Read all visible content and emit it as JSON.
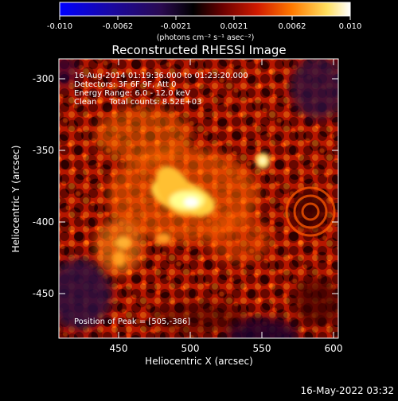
{
  "colorbar": {
    "ticks": [
      "-0.010",
      "-0.0062",
      "-0.0021",
      "0.0021",
      "0.0062",
      "0.010"
    ],
    "units": "(photons cm⁻² s⁻¹ asec⁻²)",
    "colors": [
      "#0000ff",
      "#2a0a6a",
      "#000000",
      "#7a0000",
      "#e02000",
      "#ff8800",
      "#ffff80",
      "#ffffff"
    ]
  },
  "plot": {
    "title": "Reconstructed RHESSI Image",
    "xlabel": "Heliocentric X (arcsec)",
    "ylabel": "Heliocentric Y (arcsec)",
    "xticks": [
      "450",
      "500",
      "550",
      "600"
    ],
    "yticks": [
      "-300",
      "-350",
      "-400",
      "-450"
    ],
    "annotations": [
      "16-Aug-2014 01:19:36.000 to 01:23:20.000",
      "Detectors: 3F 6F 9F, Att 0",
      "Energy Range: 6.0 - 12.0 keV",
      "Clean     Total counts: 8.52E+03"
    ],
    "peak_label": "Position of Peak = [505,-386]"
  },
  "footer": {
    "timestamp": "16-May-2022 03:32"
  }
}
